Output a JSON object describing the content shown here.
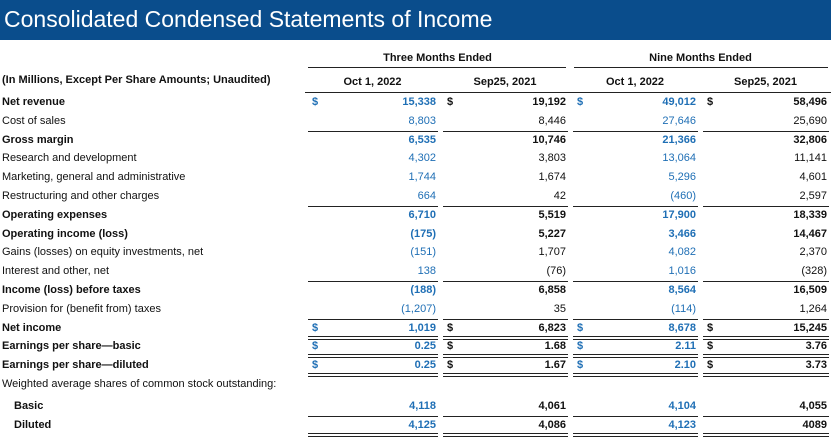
{
  "header": {
    "title": "Consolidated Condensed Statements of Income"
  },
  "table": {
    "groups": [
      "Three Months Ended",
      "Nine Months Ended"
    ],
    "columns": [
      "(In Millions, Except Per Share Amounts; Unaudited)",
      "Oct 1, 2022",
      "Sep25, 2021",
      "Oct 1, 2022",
      "Sep25, 2021"
    ],
    "currency": "$",
    "rows": [
      {
        "label": "Net revenue",
        "values": [
          "15,338",
          "19,192",
          "49,012",
          "58,496"
        ]
      },
      {
        "label": "Cost of sales",
        "values": [
          "8,803",
          "8,446",
          "27,646",
          "25,690"
        ]
      },
      {
        "label": "Gross margin",
        "values": [
          "6,535",
          "10,746",
          "21,366",
          "32,806"
        ]
      },
      {
        "label": "Research and development",
        "values": [
          "4,302",
          "3,803",
          "13,064",
          "11,141"
        ]
      },
      {
        "label": "Marketing, general and administrative",
        "values": [
          "1,744",
          "1,674",
          "5,296",
          "4,601"
        ]
      },
      {
        "label": "Restructuring and other charges",
        "values": [
          "664",
          "42",
          "(460)",
          "2,597"
        ]
      },
      {
        "label": "Operating expenses",
        "values": [
          "6,710",
          "5,519",
          "17,900",
          "18,339"
        ]
      },
      {
        "label": "Operating income (loss)",
        "values": [
          "(175)",
          "5,227",
          "3,466",
          "14,467"
        ]
      },
      {
        "label": "Gains (losses) on equity investments, net",
        "values": [
          "(151)",
          "1,707",
          "4,082",
          "2,370"
        ]
      },
      {
        "label": "Interest and other, net",
        "values": [
          "138",
          "(76)",
          "1,016",
          "(328)"
        ]
      },
      {
        "label": "Income (loss) before taxes",
        "values": [
          "(188)",
          "6,858",
          "8,564",
          "16,509"
        ]
      },
      {
        "label": "Provision for (benefit from) taxes",
        "values": [
          "(1,207)",
          "35",
          "(114)",
          "1,264"
        ]
      },
      {
        "label": "Net income",
        "values": [
          "1,019",
          "6,823",
          "8,678",
          "15,245"
        ]
      },
      {
        "label": "Earnings per share—basic",
        "values": [
          "0.25",
          "1.68",
          "2.11",
          "3.76"
        ]
      },
      {
        "label": "Earnings per share—diluted",
        "values": [
          "0.25",
          "1.67",
          "2.10",
          "3.73"
        ]
      },
      {
        "label": "Weighted average shares of common stock outstanding:",
        "values": []
      },
      {
        "label": "Basic",
        "values": [
          "4,118",
          "4,061",
          "4,104",
          "4,055"
        ]
      },
      {
        "label": "Diluted",
        "values": [
          "4,125",
          "4,086",
          "4,123",
          "4089"
        ]
      }
    ]
  }
}
